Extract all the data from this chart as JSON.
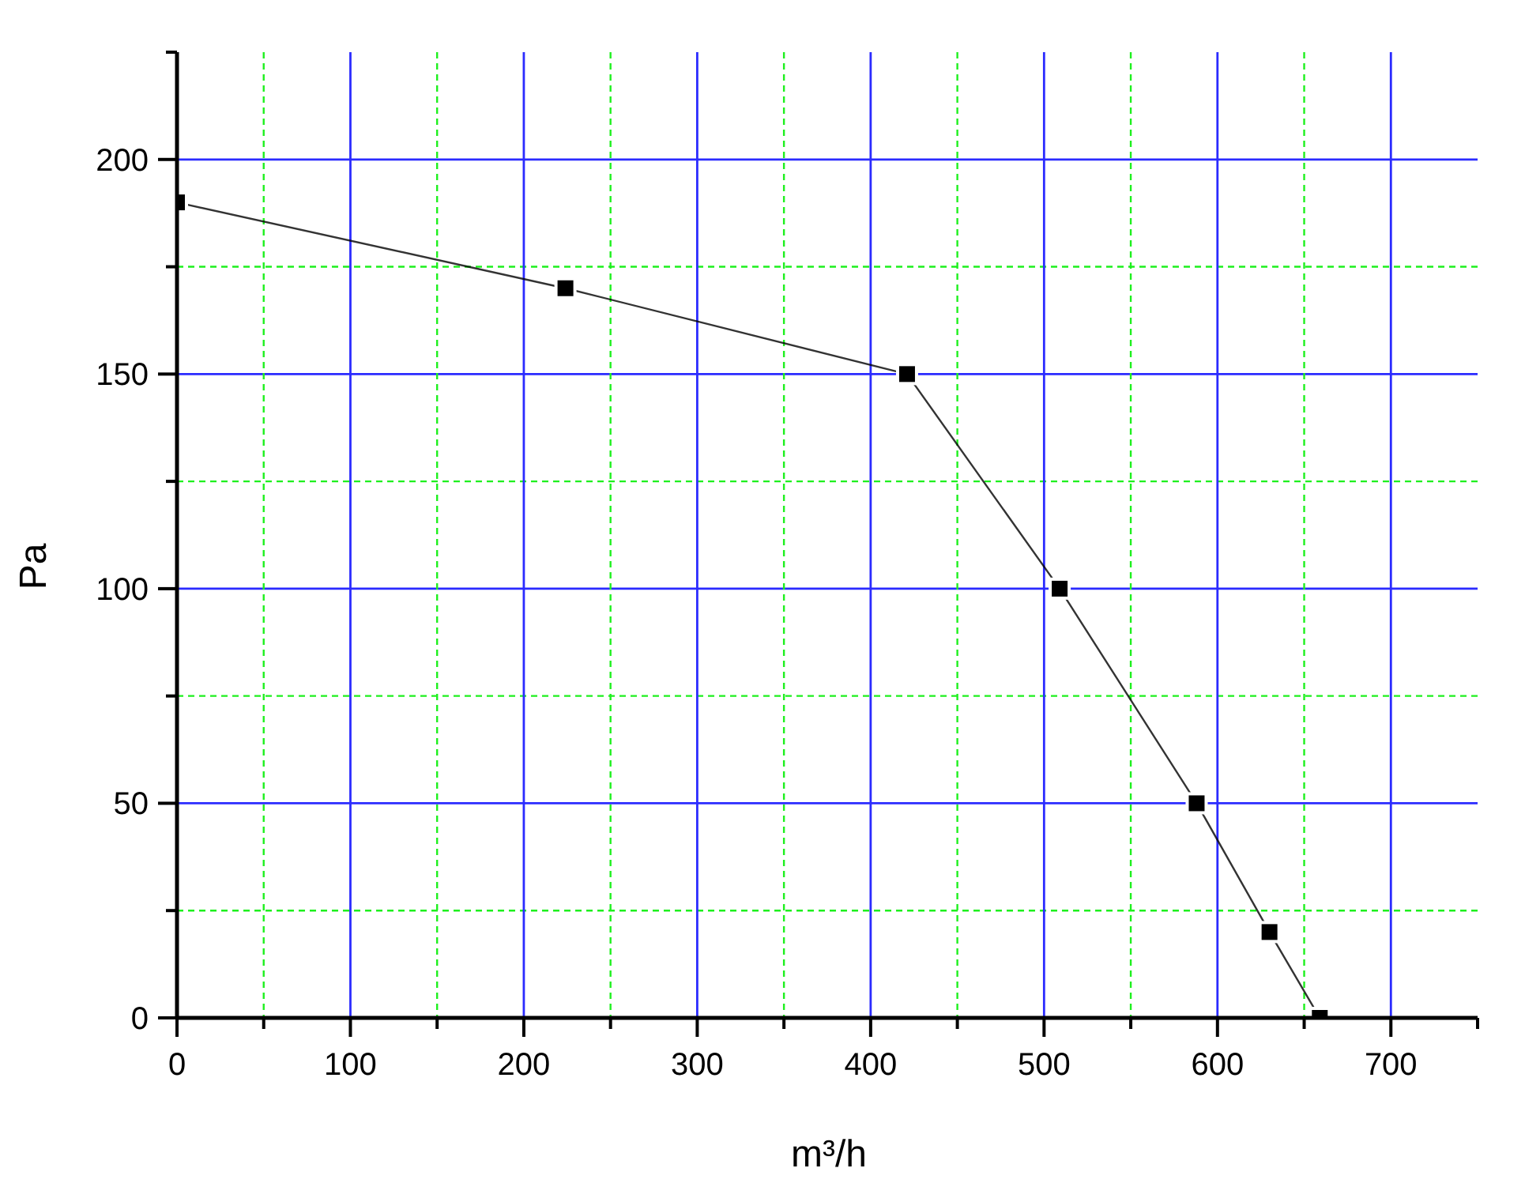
{
  "chart_data": {
    "type": "line",
    "xlabel": "m³/h",
    "ylabel": "Pa",
    "x": [
      0,
      224,
      421,
      509,
      588,
      630,
      659
    ],
    "series": [
      {
        "color": "#000000",
        "values": [
          190,
          170,
          150,
          100,
          50,
          20,
          0
        ]
      }
    ],
    "xlim": [
      0,
      750
    ],
    "ylim": [
      0,
      225
    ],
    "xticks": [
      0,
      {
        "value": 50,
        "label": null
      },
      100,
      {
        "value": 150,
        "label": null
      },
      200,
      {
        "value": 250,
        "label": null
      },
      300,
      {
        "value": 350,
        "label": null
      },
      400,
      {
        "value": 450,
        "label": null
      },
      500,
      {
        "value": 550,
        "label": null
      },
      600,
      {
        "value": 650,
        "label": null
      },
      700,
      {
        "value": 750,
        "label": null
      }
    ],
    "yticks": [
      0,
      {
        "value": 25,
        "label": null
      },
      50,
      {
        "value": 75,
        "label": null
      },
      100,
      {
        "value": 125,
        "label": null
      },
      150,
      {
        "value": 175,
        "label": null
      },
      200,
      {
        "value": 225,
        "label": null
      }
    ],
    "grid": true,
    "marker": "square",
    "line_style": "solid"
  }
}
